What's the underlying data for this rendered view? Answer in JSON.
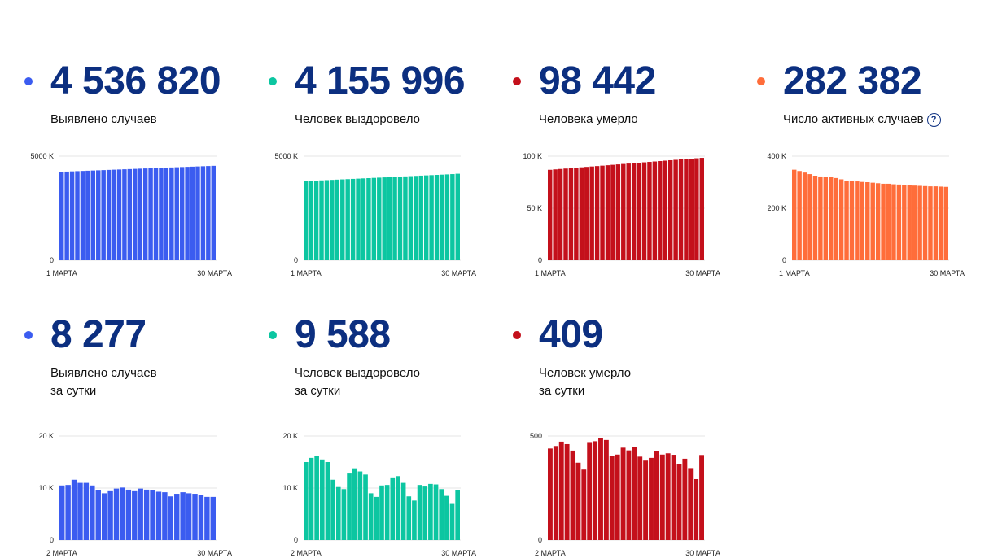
{
  "cards": [
    {
      "value": "4 536 820",
      "label_lines": [
        "Выявлено случаев"
      ],
      "color": "#3b5cf0"
    },
    {
      "value": "4 155 996",
      "label_lines": [
        "Человек выздоровело"
      ],
      "color": "#0cc6a1"
    },
    {
      "value": "98 442",
      "label_lines": [
        "Человека умерло"
      ],
      "color": "#c4101b"
    },
    {
      "value": "282 382",
      "label_lines": [
        "Число активных случаев"
      ],
      "color": "#ff6d3a",
      "help_icon": "question-circle-icon",
      "help_glyph": "?"
    },
    {
      "value": "8 277",
      "label_lines": [
        "Выявлено случаев",
        "за сутки"
      ],
      "color": "#3b5cf0"
    },
    {
      "value": "9 588",
      "label_lines": [
        "Человек выздоровело",
        "за сутки"
      ],
      "color": "#0cc6a1"
    },
    {
      "value": "409",
      "label_lines": [
        "Человек умерло",
        "за сутки"
      ],
      "color": "#c4101b"
    }
  ],
  "chart_data": [
    {
      "type": "bar",
      "title": "Выявлено случаев",
      "color": "#3b5cf0",
      "x_start_label": "1 МАРТА",
      "x_end_label": "30 МАРТА",
      "ylim": [
        0,
        5000
      ],
      "yticks": [
        0,
        5000
      ],
      "ytick_labels": [
        "0",
        "5000 K"
      ],
      "values": [
        4250,
        4260,
        4270,
        4281,
        4291,
        4301,
        4311,
        4321,
        4331,
        4341,
        4351,
        4360,
        4370,
        4380,
        4390,
        4400,
        4410,
        4419,
        4429,
        4439,
        4449,
        4458,
        4468,
        4478,
        4488,
        4497,
        4507,
        4517,
        4527,
        4537
      ]
    },
    {
      "type": "bar",
      "title": "Человек выздоровело",
      "color": "#0cc6a1",
      "x_start_label": "1 МАРТА",
      "x_end_label": "30 МАРТА",
      "ylim": [
        0,
        5000
      ],
      "yticks": [
        0,
        5000
      ],
      "ytick_labels": [
        "0",
        "5000 K"
      ],
      "values": [
        3800,
        3812,
        3825,
        3837,
        3849,
        3861,
        3873,
        3885,
        3897,
        3909,
        3921,
        3933,
        3945,
        3957,
        3969,
        3981,
        3993,
        4005,
        4017,
        4029,
        4041,
        4053,
        4065,
        4077,
        4089,
        4101,
        4113,
        4125,
        4139,
        4156
      ]
    },
    {
      "type": "bar",
      "title": "Человека умерло",
      "color": "#c4101b",
      "x_start_label": "1 МАРТА",
      "x_end_label": "30 МАРТА",
      "ylim": [
        0,
        100
      ],
      "yticks": [
        0,
        50,
        100
      ],
      "ytick_labels": [
        "0",
        "50 K",
        "100 K"
      ],
      "values": [
        86.9,
        87.3,
        87.7,
        88.1,
        88.5,
        88.9,
        89.3,
        89.7,
        90.1,
        90.5,
        90.9,
        91.3,
        91.7,
        92.1,
        92.5,
        92.9,
        93.3,
        93.7,
        94.1,
        94.5,
        94.9,
        95.3,
        95.7,
        96.1,
        96.5,
        96.9,
        97.2,
        97.6,
        98.0,
        98.4
      ]
    },
    {
      "type": "bar",
      "title": "Число активных случаев",
      "color": "#ff6d3a",
      "x_start_label": "1 МАРТА",
      "x_end_label": "30 МАРТА",
      "ylim": [
        0,
        400
      ],
      "yticks": [
        0,
        200,
        400
      ],
      "ytick_labels": [
        "0",
        "200 K",
        "400 K"
      ],
      "values": [
        348,
        343,
        337,
        331,
        325,
        322,
        321,
        319,
        316,
        311,
        306,
        304,
        303,
        301,
        300,
        298,
        296,
        294,
        294,
        292,
        291,
        290,
        288,
        287,
        286,
        285,
        284,
        284,
        283,
        282
      ]
    },
    {
      "type": "bar",
      "title": "Выявлено случаев за сутки",
      "color": "#3b5cf0",
      "x_start_label": "2 МАРТА",
      "x_end_label": "30 МАРТА",
      "ylim": [
        0,
        20
      ],
      "yticks": [
        0,
        10,
        20
      ],
      "ytick_labels": [
        "0",
        "10 K",
        "20 K"
      ],
      "values": [
        10.5,
        10.6,
        11.6,
        11.0,
        11.0,
        10.5,
        9.6,
        9.0,
        9.4,
        9.9,
        10.1,
        9.7,
        9.4,
        9.9,
        9.7,
        9.6,
        9.3,
        9.2,
        8.4,
        8.9,
        9.2,
        9.0,
        8.9,
        8.6,
        8.3,
        8.3
      ]
    },
    {
      "type": "bar",
      "title": "Человек выздоровело за сутки",
      "color": "#0cc6a1",
      "x_start_label": "2 МАРТА",
      "x_end_label": "30 МАРТА",
      "ylim": [
        0,
        20
      ],
      "yticks": [
        0,
        10,
        20
      ],
      "ytick_labels": [
        "0",
        "10 K",
        "20 K"
      ],
      "values": [
        15.0,
        15.8,
        16.2,
        15.5,
        15.0,
        11.6,
        10.2,
        9.8,
        12.8,
        13.8,
        13.2,
        12.6,
        9.0,
        8.3,
        10.5,
        10.6,
        11.9,
        12.3,
        11.0,
        8.4,
        7.6,
        10.6,
        10.3,
        10.8,
        10.7,
        9.8,
        8.5,
        7.1,
        9.6
      ]
    },
    {
      "type": "bar",
      "title": "Человек умерло за сутки",
      "color": "#c4101b",
      "x_start_label": "2 МАРТА",
      "x_end_label": "30 МАРТА",
      "ylim": [
        0,
        500
      ],
      "yticks": [
        0,
        500
      ],
      "ytick_labels": [
        "0",
        "500"
      ],
      "values": [
        440,
        452,
        473,
        461,
        430,
        372,
        339,
        467,
        475,
        489,
        481,
        403,
        411,
        444,
        431,
        446,
        401,
        382,
        395,
        428,
        411,
        417,
        410,
        367,
        391,
        346,
        293,
        409
      ]
    }
  ]
}
